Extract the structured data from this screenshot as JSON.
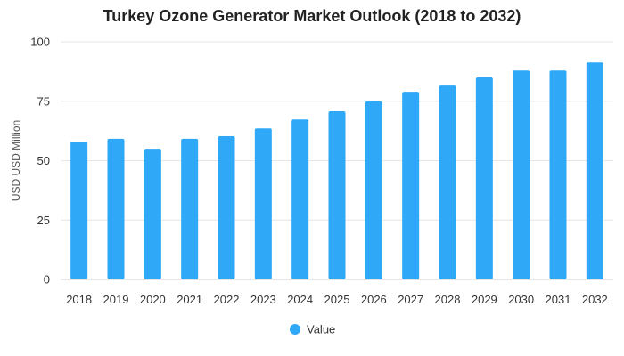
{
  "chart_data": {
    "type": "bar",
    "title": "Turkey Ozone Generator Market Outlook (2018 to 2032)",
    "ylabel": "USD USD Million",
    "xlabel": "",
    "ylim": [
      0,
      100
    ],
    "yticks": [
      0,
      25,
      50,
      75,
      100
    ],
    "grid": true,
    "legend_position": "bottom",
    "categories": [
      "2018",
      "2019",
      "2020",
      "2021",
      "2022",
      "2023",
      "2024",
      "2025",
      "2026",
      "2027",
      "2028",
      "2029",
      "2030",
      "2031",
      "2032"
    ],
    "series": [
      {
        "name": "Value",
        "color": "#2ea8f7",
        "values": [
          58,
          59.2,
          55,
          59.2,
          60.3,
          63.6,
          67.3,
          70.8,
          74.9,
          79,
          81.6,
          85,
          87.9,
          87.9,
          91.3
        ]
      }
    ]
  }
}
